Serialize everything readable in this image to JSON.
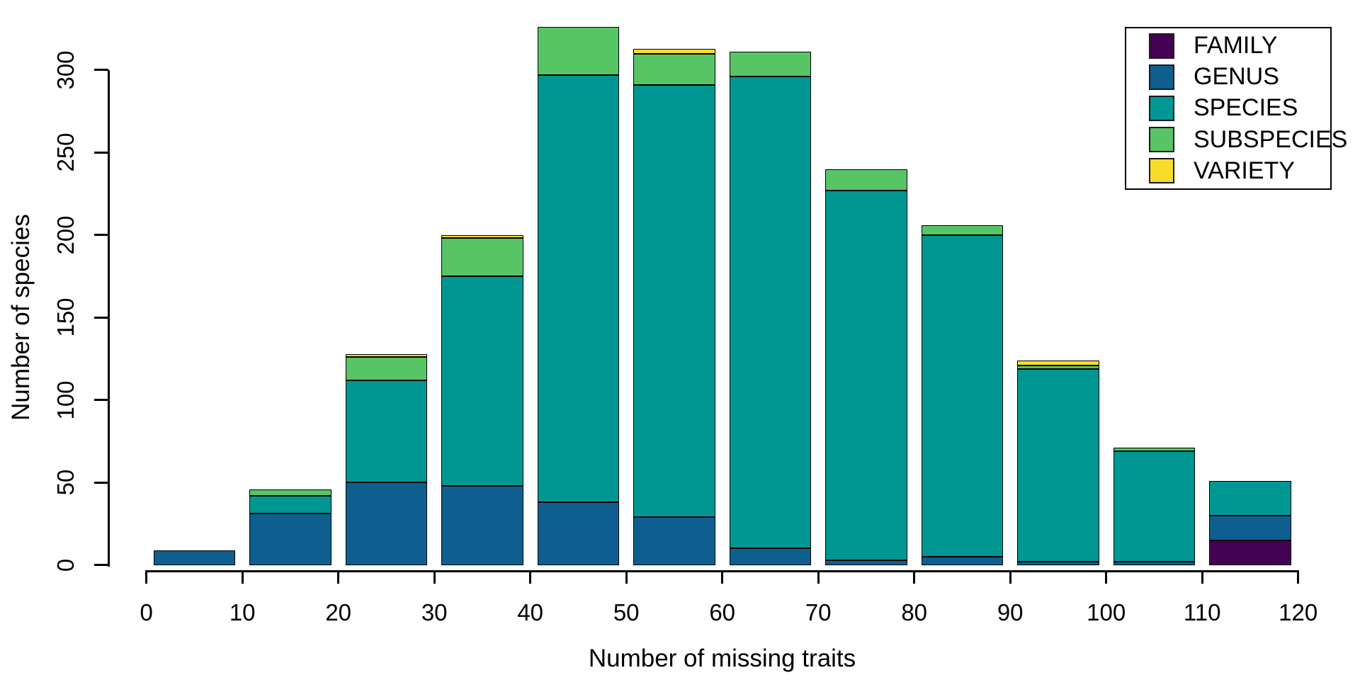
{
  "chart_data": {
    "type": "bar",
    "stacked": true,
    "title": "",
    "xlabel": "Number of missing traits",
    "ylabel": "Number of species",
    "background_color": "#FFFFFF",
    "bar_border_color": "#000000",
    "categories": [
      "0-10",
      "10-20",
      "20-30",
      "30-40",
      "40-50",
      "50-60",
      "60-70",
      "70-80",
      "80-90",
      "90-100",
      "100-110",
      "110-120"
    ],
    "bin_start": 0,
    "bin_width": 10,
    "series": [
      {
        "name": "FAMILY",
        "color": "#440154",
        "values": [
          0,
          0,
          0,
          0,
          0,
          0,
          0,
          0,
          0,
          0,
          0,
          15
        ]
      },
      {
        "name": "GENUS",
        "color": "#0E5F90",
        "values": [
          9,
          31,
          50,
          48,
          38,
          29,
          10,
          3,
          5,
          2,
          2,
          15
        ]
      },
      {
        "name": "SPECIES",
        "color": "#009793",
        "values": [
          0,
          11,
          62,
          127,
          259,
          262,
          286,
          224,
          195,
          117,
          67,
          21
        ]
      },
      {
        "name": "SUBSPECIES",
        "color": "#57C566",
        "values": [
          0,
          4,
          14,
          23,
          29,
          19,
          15,
          13,
          6,
          2,
          2,
          0
        ]
      },
      {
        "name": "VARIETY",
        "color": "#F8DC2B",
        "values": [
          0,
          0,
          2,
          2,
          0,
          3,
          0,
          0,
          0,
          3,
          0,
          0
        ]
      }
    ],
    "x_ticks": [
      0,
      10,
      20,
      30,
      40,
      50,
      60,
      70,
      80,
      90,
      100,
      110,
      120
    ],
    "y_ticks": [
      0,
      50,
      100,
      150,
      200,
      250,
      300
    ],
    "xlim": [
      0,
      120
    ],
    "ylim": [
      0,
      330
    ],
    "grid": false,
    "legend": {
      "position": "top-right",
      "labels": [
        "FAMILY",
        "GENUS",
        "SPECIES",
        "SUBSPECIES",
        "VARIETY"
      ]
    }
  }
}
